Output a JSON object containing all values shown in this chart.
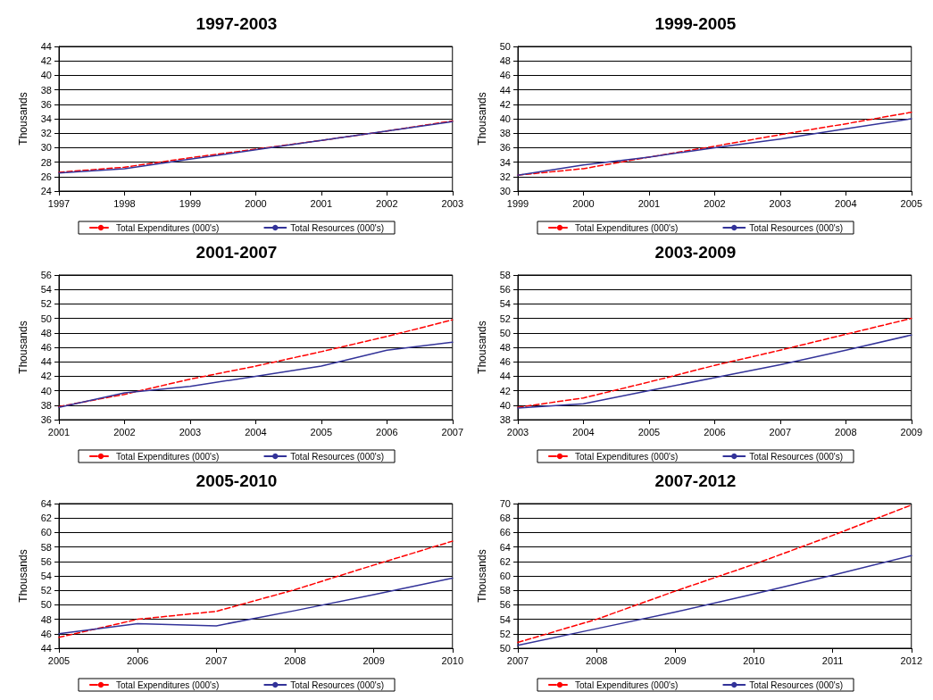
{
  "chart_data": [
    {
      "type": "line",
      "title": "1997-2003",
      "ylabel": "Thousands",
      "categories": [
        "1997",
        "1998",
        "1999",
        "2000",
        "2001",
        "2002",
        "2003"
      ],
      "series": [
        {
          "name": "Total Expenditures (000's)",
          "color": "#ff0000",
          "line_style": "dashed",
          "values": [
            26.6,
            27.3,
            28.6,
            29.8,
            31.0,
            32.3,
            33.7
          ]
        },
        {
          "name": "Total Resources (000's)",
          "color": "#333399",
          "line_style": "solid",
          "values": [
            26.5,
            27.1,
            28.4,
            29.7,
            31.0,
            32.3,
            33.6
          ]
        }
      ],
      "ylim": [
        24,
        44
      ],
      "yticks": [
        24,
        26,
        28,
        30,
        32,
        34,
        36,
        38,
        40,
        42,
        44
      ],
      "grid": "y",
      "legend": "bottom",
      "marker": "none"
    },
    {
      "type": "line",
      "title": "1999-2005",
      "ylabel": "Thousands",
      "categories": [
        "1999",
        "2000",
        "2001",
        "2002",
        "2003",
        "2004",
        "2005"
      ],
      "series": [
        {
          "name": "Total Expenditures (000's)",
          "color": "#ff0000",
          "line_style": "dashed",
          "values": [
            32.2,
            33.1,
            34.7,
            36.2,
            37.8,
            39.3,
            40.9
          ]
        },
        {
          "name": "Total Resources (000's)",
          "color": "#333399",
          "line_style": "solid",
          "values": [
            32.2,
            33.6,
            34.7,
            36.0,
            37.2,
            38.6,
            40.0
          ]
        }
      ],
      "ylim": [
        30,
        50
      ],
      "yticks": [
        30,
        32,
        34,
        36,
        38,
        40,
        42,
        44,
        46,
        48,
        50
      ],
      "grid": "y",
      "legend": "bottom",
      "marker": "none"
    },
    {
      "type": "line",
      "title": "2001-2007",
      "ylabel": "Thousands",
      "categories": [
        "2001",
        "2002",
        "2003",
        "2004",
        "2005",
        "2006",
        "2007"
      ],
      "series": [
        {
          "name": "Total Expenditures (000's)",
          "color": "#ff0000",
          "line_style": "dashed",
          "values": [
            37.8,
            39.5,
            41.6,
            43.4,
            45.4,
            47.5,
            49.8
          ]
        },
        {
          "name": "Total Resources (000's)",
          "color": "#333399",
          "line_style": "solid",
          "values": [
            37.7,
            39.7,
            40.6,
            42.0,
            43.4,
            45.6,
            46.7
          ]
        }
      ],
      "ylim": [
        36,
        56
      ],
      "yticks": [
        36,
        38,
        40,
        42,
        44,
        46,
        48,
        50,
        52,
        54,
        56
      ],
      "grid": "y",
      "legend": "bottom",
      "marker": "none"
    },
    {
      "type": "line",
      "title": "2003-2009",
      "ylabel": "Thousands",
      "categories": [
        "2003",
        "2004",
        "2005",
        "2006",
        "2007",
        "2008",
        "2009"
      ],
      "series": [
        {
          "name": "Total Expenditures (000's)",
          "color": "#ff0000",
          "line_style": "dashed",
          "values": [
            39.7,
            41.0,
            43.2,
            45.5,
            47.6,
            49.8,
            52.0
          ]
        },
        {
          "name": "Total Resources (000's)",
          "color": "#333399",
          "line_style": "solid",
          "values": [
            39.6,
            40.2,
            42.0,
            43.8,
            45.6,
            47.6,
            49.7
          ]
        }
      ],
      "ylim": [
        38,
        58
      ],
      "yticks": [
        38,
        40,
        42,
        44,
        46,
        48,
        50,
        52,
        54,
        56,
        58
      ],
      "grid": "y",
      "legend": "bottom",
      "marker": "none"
    },
    {
      "type": "line",
      "title": "2005-2010",
      "ylabel": "Thousands",
      "categories": [
        "2005",
        "2006",
        "2007",
        "2008",
        "2009",
        "2010"
      ],
      "series": [
        {
          "name": "Total Expenditures (000's)",
          "color": "#ff0000",
          "line_style": "dashed",
          "values": [
            45.5,
            48.0,
            49.1,
            52.1,
            55.5,
            58.8
          ]
        },
        {
          "name": "Total Resources (000's)",
          "color": "#333399",
          "line_style": "solid",
          "values": [
            46.0,
            47.4,
            47.1,
            49.2,
            51.4,
            53.7
          ]
        }
      ],
      "ylim": [
        44,
        64
      ],
      "yticks": [
        44,
        46,
        48,
        50,
        52,
        54,
        56,
        58,
        60,
        62,
        64
      ],
      "grid": "y",
      "legend": "bottom",
      "marker": "none"
    },
    {
      "type": "line",
      "title": "2007-2012",
      "ylabel": "Thousands",
      "categories": [
        "2007",
        "2008",
        "2009",
        "2010",
        "2011",
        "2012"
      ],
      "series": [
        {
          "name": "Total Expenditures (000's)",
          "color": "#ff0000",
          "line_style": "dashed",
          "values": [
            50.8,
            54.0,
            57.9,
            61.6,
            65.6,
            69.8
          ]
        },
        {
          "name": "Total Resources (000's)",
          "color": "#333399",
          "line_style": "solid",
          "values": [
            50.4,
            52.7,
            55.0,
            57.5,
            60.1,
            62.8
          ]
        }
      ],
      "ylim": [
        50,
        70
      ],
      "yticks": [
        50,
        52,
        54,
        56,
        58,
        60,
        62,
        64,
        66,
        68,
        70
      ],
      "grid": "y",
      "legend": "bottom",
      "marker": "none"
    }
  ]
}
